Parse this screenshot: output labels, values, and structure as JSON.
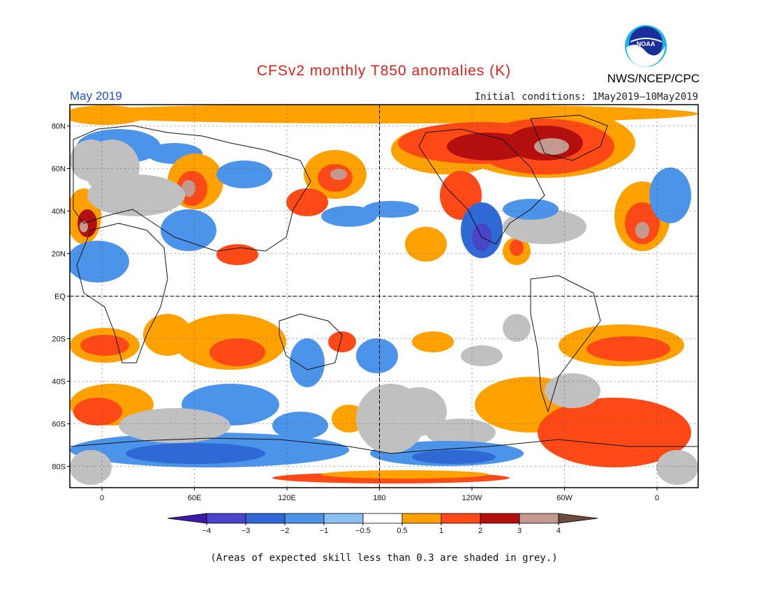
{
  "header": {
    "title": "CFSv2 monthly T850 anomalies (K)",
    "month": "May 2019",
    "initial_conditions": "Initial conditions: 1May2019–10May2019",
    "agency": "NWS/NCEP/CPC",
    "logo_text": "NOAA"
  },
  "caption": "(Areas of expected skill less than 0.3 are shaded in grey.)",
  "map": {
    "projection": "cylindrical",
    "lon_center": 180,
    "lat_range": [
      -90,
      90
    ],
    "lon_tick_labels": [
      "0",
      "60E",
      "120E",
      "180",
      "120W",
      "60W",
      "0"
    ],
    "lat_tick_labels": [
      "80N",
      "60N",
      "40N",
      "20N",
      "EQ",
      "20S",
      "40S",
      "60S",
      "80S"
    ],
    "skill_mask_color": "#c0c0c0"
  },
  "legend": {
    "levels": [
      "−4",
      "−3",
      "−2",
      "−1",
      "−0.5",
      "0.5",
      "1",
      "2",
      "3",
      "4"
    ],
    "colors": [
      "#3e1aa8",
      "#4a44c8",
      "#2f69d6",
      "#4b94ea",
      "#8cc0f4",
      "#ffffff",
      "#ffa200",
      "#ff4a17",
      "#b30f0f",
      "#c49a8e",
      "#6e4a3b"
    ]
  }
}
